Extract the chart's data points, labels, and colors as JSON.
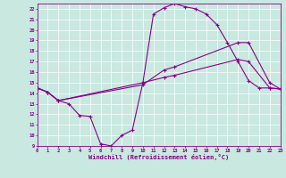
{
  "xlabel": "Windchill (Refroidissement éolien,°C)",
  "xlim": [
    0,
    23
  ],
  "ylim": [
    9,
    22.5
  ],
  "xticks": [
    0,
    1,
    2,
    3,
    4,
    5,
    6,
    7,
    8,
    9,
    10,
    11,
    12,
    13,
    14,
    15,
    16,
    17,
    18,
    19,
    20,
    21,
    22,
    23
  ],
  "yticks": [
    9,
    10,
    11,
    12,
    13,
    14,
    15,
    16,
    17,
    18,
    19,
    20,
    21,
    22
  ],
  "bg_color": "#c8e8e0",
  "grid_color": "#ffffff",
  "line_color": "#880088",
  "line1_x": [
    0,
    1,
    2,
    3,
    4,
    5,
    6,
    7,
    8,
    9,
    10,
    11,
    12,
    13,
    14,
    15,
    16,
    17,
    18,
    19,
    20,
    21,
    22,
    23
  ],
  "line1_y": [
    14.5,
    14.1,
    13.3,
    13.0,
    11.9,
    11.8,
    9.2,
    9.0,
    10.0,
    10.5,
    15.0,
    21.5,
    22.1,
    22.5,
    22.2,
    22.0,
    21.5,
    20.5,
    18.8,
    17.0,
    15.2,
    14.5,
    14.5,
    14.4
  ],
  "line2_x": [
    0,
    1,
    2,
    10,
    12,
    13,
    19,
    20,
    22,
    23
  ],
  "line2_y": [
    14.5,
    14.1,
    13.3,
    15.0,
    15.5,
    15.7,
    17.2,
    17.0,
    14.5,
    14.4
  ],
  "line3_x": [
    0,
    1,
    2,
    10,
    12,
    13,
    19,
    20,
    22,
    23
  ],
  "line3_y": [
    14.5,
    14.1,
    13.3,
    14.8,
    16.2,
    16.5,
    18.8,
    18.8,
    15.0,
    14.4
  ]
}
